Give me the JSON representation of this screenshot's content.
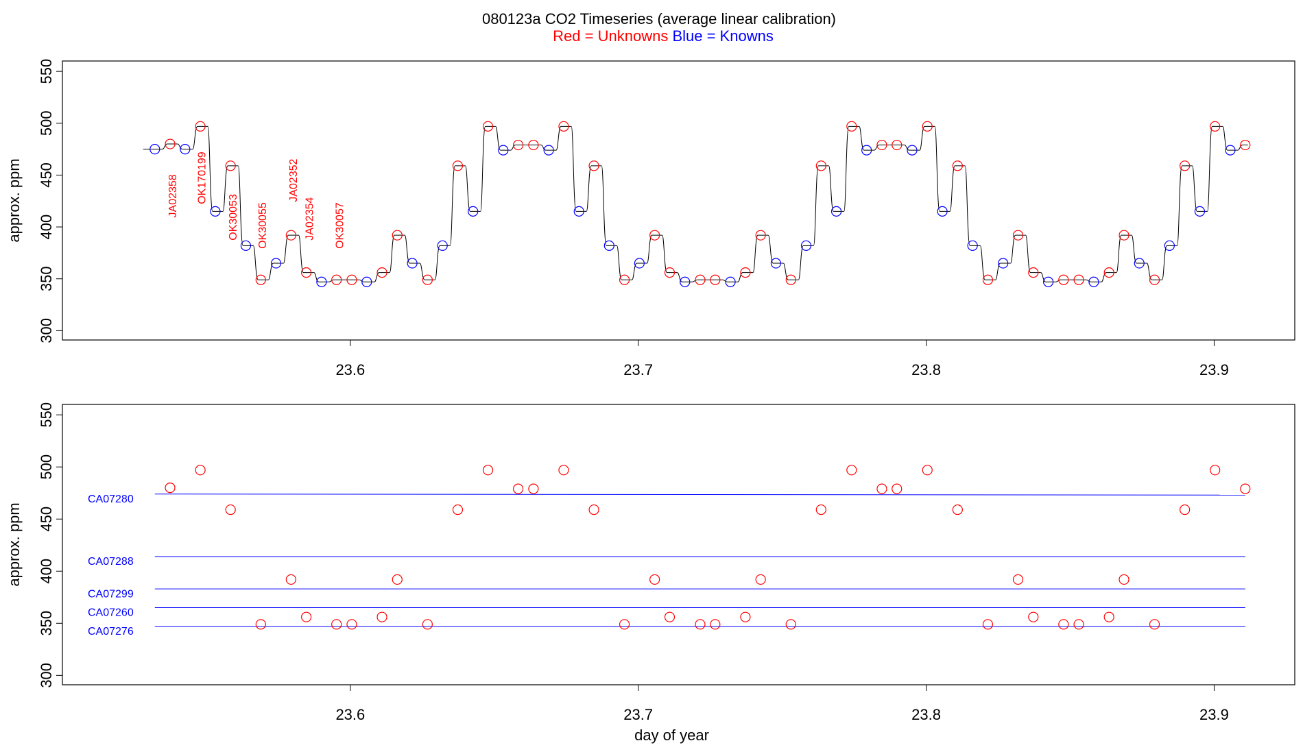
{
  "chart_data": [
    {
      "type": "line",
      "title": "080123a   CO2 Timeseries (average linear calibration)",
      "ylabel": "approx. ppm",
      "x": [
        23.5321,
        23.5374,
        23.5426,
        23.5479,
        23.5531,
        23.5584,
        23.5637,
        23.5689,
        23.5742,
        23.5794,
        23.5847,
        23.59,
        23.5952,
        23.6005,
        23.6057,
        23.611,
        23.6163,
        23.6215,
        23.6268,
        23.632,
        23.6373,
        23.6426,
        23.6478,
        23.6531,
        23.6583,
        23.6636,
        23.6689,
        23.6741,
        23.6794,
        23.6846,
        23.6899,
        23.6952,
        23.7004,
        23.7057,
        23.7109,
        23.7162,
        23.7215,
        23.7267,
        23.732,
        23.7372,
        23.7425,
        23.7478,
        23.753,
        23.7583,
        23.7635,
        23.7688,
        23.7741,
        23.7793,
        23.7846,
        23.7898,
        23.7951,
        23.8004,
        23.8056,
        23.8109,
        23.8161,
        23.8214,
        23.8267,
        23.8319,
        23.8372,
        23.8424,
        23.8477,
        23.853,
        23.8582,
        23.8635,
        23.8687,
        23.874,
        23.8793,
        23.8845,
        23.8898,
        23.895,
        23.9003,
        23.9056,
        23.9108
      ],
      "series": [
        {
          "name": "Red = Unknowns",
          "color": "#ff0000",
          "values": [
            null,
            480,
            null,
            497,
            null,
            459,
            null,
            349,
            null,
            392,
            356,
            null,
            349,
            349,
            null,
            356,
            392,
            null,
            349,
            null,
            459,
            null,
            497,
            null,
            479,
            479,
            null,
            497,
            null,
            459,
            null,
            349,
            null,
            392,
            356,
            null,
            349,
            349,
            null,
            356,
            392,
            null,
            349,
            null,
            459,
            null,
            497,
            null,
            479,
            479,
            null,
            497,
            null,
            459,
            null,
            349,
            null,
            392,
            356,
            null,
            349,
            349,
            null,
            356,
            392,
            null,
            349,
            null,
            459,
            null,
            497,
            null,
            479
          ]
        },
        {
          "name": "Blue = Knowns",
          "color": "#0000ff",
          "values": [
            475,
            null,
            475,
            null,
            415,
            null,
            382,
            null,
            365,
            null,
            null,
            347,
            null,
            null,
            347,
            null,
            null,
            365,
            null,
            382,
            null,
            415,
            null,
            474,
            null,
            null,
            474,
            null,
            415,
            null,
            382,
            null,
            365,
            null,
            null,
            347,
            null,
            null,
            347,
            null,
            null,
            365,
            null,
            382,
            null,
            415,
            null,
            474,
            null,
            null,
            474,
            null,
            415,
            null,
            382,
            null,
            365,
            null,
            null,
            347,
            null,
            null,
            347,
            null,
            null,
            365,
            null,
            382,
            null,
            415,
            null,
            474,
            null
          ]
        }
      ],
      "line_color": "#000000",
      "annotations": [
        {
          "text": "JA02358",
          "x": 23.5385,
          "y": 409
        },
        {
          "text": "OK170199",
          "x": 23.5487,
          "y": 422
        },
        {
          "text": "OK30053",
          "x": 23.5595,
          "y": 387
        },
        {
          "text": "OK30055",
          "x": 23.5697,
          "y": 379
        },
        {
          "text": "JA02352",
          "x": 23.5805,
          "y": 424
        },
        {
          "text": "JA02354",
          "x": 23.586,
          "y": 387
        },
        {
          "text": "OK30057",
          "x": 23.5965,
          "y": 379
        }
      ],
      "xlim": [
        23.5,
        23.928
      ],
      "xticks": [
        23.6,
        23.7,
        23.8,
        23.9
      ],
      "ylim": [
        291,
        560
      ],
      "yticks": [
        300,
        350,
        400,
        450,
        500,
        550
      ]
    },
    {
      "type": "scatter",
      "ylabel": "approx. ppm",
      "xlabel": "day of year",
      "x": [
        23.5321,
        23.5374,
        23.5426,
        23.5479,
        23.5531,
        23.5584,
        23.5637,
        23.5689,
        23.5742,
        23.5794,
        23.5847,
        23.59,
        23.5952,
        23.6005,
        23.6057,
        23.611,
        23.6163,
        23.6215,
        23.6268,
        23.632,
        23.6373,
        23.6426,
        23.6478,
        23.6531,
        23.6583,
        23.6636,
        23.6689,
        23.6741,
        23.6794,
        23.6846,
        23.6899,
        23.6952,
        23.7004,
        23.7057,
        23.7109,
        23.7162,
        23.7215,
        23.7267,
        23.732,
        23.7372,
        23.7425,
        23.7478,
        23.753,
        23.7583,
        23.7635,
        23.7688,
        23.7741,
        23.7793,
        23.7846,
        23.7898,
        23.7951,
        23.8004,
        23.8056,
        23.8109,
        23.8161,
        23.8214,
        23.8267,
        23.8319,
        23.8372,
        23.8424,
        23.8477,
        23.853,
        23.8582,
        23.8635,
        23.8687,
        23.874,
        23.8793,
        23.8845,
        23.8898,
        23.895,
        23.9003,
        23.9056,
        23.9108
      ],
      "series": [
        {
          "color": "#ff0000",
          "values": [
            null,
            480,
            null,
            497,
            null,
            459,
            null,
            349,
            null,
            392,
            356,
            null,
            349,
            349,
            null,
            356,
            392,
            null,
            349,
            null,
            459,
            null,
            497,
            null,
            479,
            479,
            null,
            497,
            null,
            459,
            null,
            349,
            null,
            392,
            356,
            null,
            349,
            349,
            null,
            356,
            392,
            null,
            349,
            null,
            459,
            null,
            497,
            null,
            479,
            479,
            null,
            497,
            null,
            459,
            null,
            349,
            null,
            392,
            356,
            null,
            349,
            349,
            null,
            356,
            392,
            null,
            349,
            null,
            459,
            null,
            497,
            null,
            479
          ]
        }
      ],
      "reference_lines": [
        {
          "label": "CA07280",
          "color": "#0000ff",
          "x": [
            23.5321,
            23.9108
          ],
          "values": [
            474,
            473
          ]
        },
        {
          "label": "CA07288",
          "color": "#0000ff",
          "x": [
            23.5321,
            23.9108
          ],
          "values": [
            414,
            414
          ]
        },
        {
          "label": "CA07299",
          "color": "#0000ff",
          "x": [
            23.5321,
            23.9108
          ],
          "values": [
            383,
            383
          ]
        },
        {
          "label": "CA07260",
          "color": "#0000ff",
          "x": [
            23.5321,
            23.9108
          ],
          "values": [
            365,
            365
          ]
        },
        {
          "label": "CA07276",
          "color": "#0000ff",
          "x": [
            23.5321,
            23.9108
          ],
          "values": [
            347,
            347
          ]
        }
      ],
      "xlim": [
        23.5,
        23.928
      ],
      "xticks": [
        23.6,
        23.7,
        23.8,
        23.9
      ],
      "ylim": [
        291,
        560
      ],
      "yticks": [
        300,
        350,
        400,
        450,
        500,
        550
      ]
    }
  ]
}
